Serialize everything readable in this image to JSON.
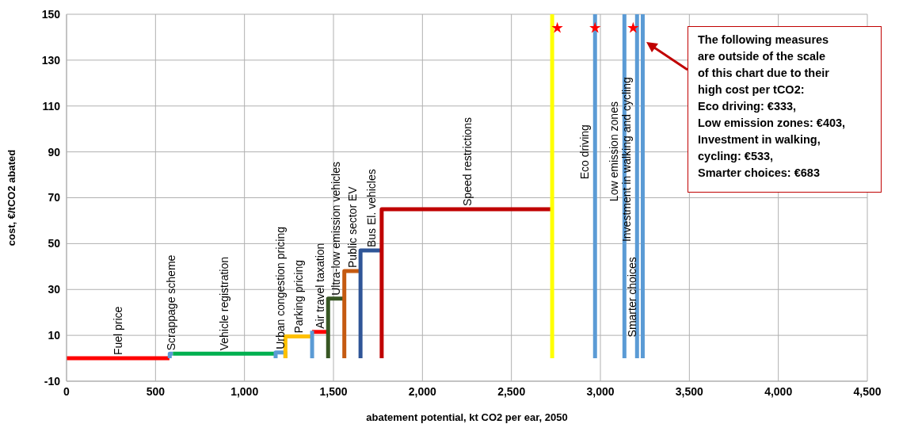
{
  "chart_data": {
    "type": "line",
    "xlabel": "abatement potential, kt CO2 per ear, 2050",
    "ylabel": "cost, €/tCO2 abated",
    "xlim": [
      0,
      4500
    ],
    "xticks": [
      0,
      500,
      {
        "value": 1000,
        "label": "1,000"
      },
      {
        "value": 1500,
        "label": "1,500"
      },
      {
        "value": 2000,
        "label": "2,000"
      },
      {
        "value": 2500,
        "label": "2,500"
      },
      {
        "value": 3000,
        "label": "3,000"
      },
      {
        "value": 3500,
        "label": "3,500"
      },
      {
        "value": 4000,
        "label": "4,000"
      },
      {
        "value": 4500,
        "label": "4,500"
      }
    ],
    "ylim": [
      -10,
      150
    ],
    "yticks": [
      -10,
      10,
      30,
      50,
      70,
      90,
      110,
      130,
      150
    ],
    "grid": true,
    "series": [
      {
        "name": "Fuel price",
        "color": "#ff0000",
        "x": [
          0,
          578
        ],
        "values": [
          0,
          0
        ]
      },
      {
        "name": "Scrappage scheme",
        "color": "#5b9bd5",
        "x": [
          580,
          580,
          598
        ],
        "values": [
          0,
          2,
          2
        ]
      },
      {
        "name": "Vehicle registration",
        "color": "#00b050",
        "x": [
          598,
          1175
        ],
        "values": [
          2,
          2
        ]
      },
      {
        "name": "Urban congestion pricing",
        "color": "#5b9bd5",
        "x": [
          1175,
          1175,
          1230,
          1230
        ],
        "values": [
          0,
          2.5,
          2.5,
          0
        ]
      },
      {
        "name": "Parking pricing",
        "color": "#ffc000",
        "x": [
          1230,
          1230,
          1380
        ],
        "values": [
          0,
          9.5,
          9.5
        ]
      },
      {
        "name": "Air travel taxation",
        "color": "#ff0000",
        "x": [
          1380,
          1470
        ],
        "values": [
          11.5,
          11.5
        ]
      },
      {
        "color": "#5b9bd5",
        "x": [
          1380,
          1380
        ],
        "values": [
          0,
          12
        ]
      },
      {
        "name": "Ultra-low emission vehicles",
        "color": "#375623",
        "x": [
          1470,
          1470,
          1561
        ],
        "values": [
          0,
          26,
          26
        ]
      },
      {
        "name": "Public sector EV",
        "color": "#c55a11",
        "x": [
          1561,
          1561,
          1652
        ],
        "values": [
          0,
          38,
          38
        ]
      },
      {
        "name": "Bus El. vehicles",
        "color": "#2f5597",
        "x": [
          1652,
          1652,
          1771
        ],
        "values": [
          0,
          47,
          47
        ]
      },
      {
        "name": "Speed restrictions",
        "color": "#c00000",
        "x": [
          1771,
          1771,
          2729
        ],
        "values": [
          0,
          65,
          65
        ]
      },
      {
        "color": "#ffff00",
        "x": [
          2729,
          2729
        ],
        "values": [
          0,
          150
        ]
      },
      {
        "name": "Eco driving",
        "color": "#5b9bd5",
        "x": [
          2970,
          2970
        ],
        "values": [
          0,
          150
        ]
      },
      {
        "name": "Low emission  zones",
        "color": "#5b9bd5",
        "x": [
          3135,
          3135
        ],
        "values": [
          0,
          150
        ]
      },
      {
        "name": "Investment in walking and cycling",
        "color": "#5b9bd5",
        "x": [
          3206,
          3206
        ],
        "values": [
          0,
          150
        ]
      },
      {
        "name": "Smarter choices",
        "color": "#5b9bd5",
        "x": [
          3238,
          3238
        ],
        "values": [
          0,
          150
        ]
      },
      {
        "type": "scatter",
        "marker": "star",
        "color": "#ff0000",
        "x": [
          2758,
          2970,
          3184
        ],
        "values": [
          144,
          144,
          144
        ]
      }
    ],
    "annotations": [
      "The following measures\nare outside of the scale\nof this chart due to their\nhigh cost per tCO2:\nEco driving: €333,\nLow emission zones: €403,\nInvestment in walking,\ncycling: €533,\nSmarter choices: €683"
    ]
  }
}
